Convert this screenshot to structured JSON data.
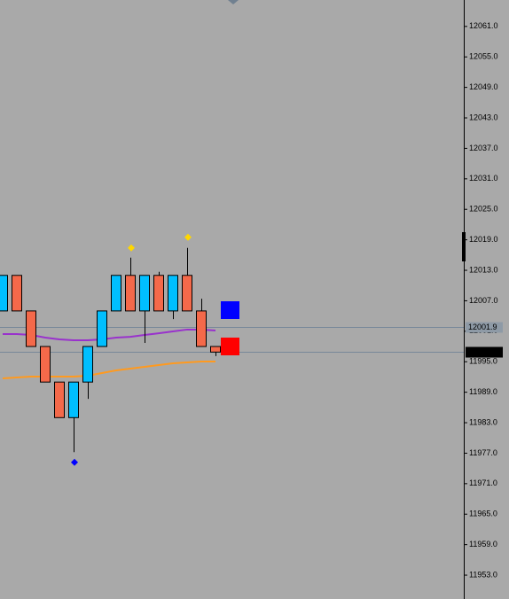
{
  "chart_data": {
    "type": "candlestick",
    "open": [
      12005,
      12012,
      12005,
      11998,
      11991,
      11984,
      11991,
      11998,
      12005,
      12012,
      12005,
      12012,
      12005,
      12012,
      12005,
      11998
    ],
    "high": [
      12012,
      12012,
      12005,
      11998,
      11991,
      11991,
      11998,
      12005,
      12012,
      12015.5,
      12012,
      12012.7,
      12012,
      12017.4,
      12007.4,
      11998
    ],
    "low": [
      12005,
      12005,
      11998,
      11991,
      11984,
      11977.2,
      11987.7,
      11998,
      12005,
      12005,
      11998.7,
      12005,
      12003.4,
      12005,
      11998,
      11996.1
    ],
    "close": [
      12012,
      12005,
      11998,
      11991,
      11984,
      11991,
      11998,
      12005,
      12012,
      12005,
      12012,
      12005,
      12012,
      12005,
      11998,
      11996.9
    ],
    "up_color": "#00bfff",
    "down_color": "#f4694a",
    "series": [
      {
        "color": "#9932cc",
        "values": [
          12000.45,
          12000.45,
          12000.28,
          11999.75,
          11999.4,
          11999.23,
          11999.23,
          11999.4,
          11999.75,
          11999.9,
          12000.28,
          12000.6,
          12000.98,
          12001.33,
          12001.33,
          12001.15
        ]
      },
      {
        "color": "#ff9a1f",
        "values": [
          11991.73,
          11991.9,
          11992.08,
          11992.08,
          11992.08,
          11992.08,
          11992.25,
          11992.78,
          11993.3,
          11993.65,
          11994.0,
          11994.35,
          11994.7,
          11994.87,
          11995.04,
          11995.04
        ]
      }
    ],
    "markers": [
      {
        "color": "#ffd700",
        "values": [
          null,
          null,
          null,
          null,
          null,
          null,
          null,
          null,
          null,
          12017.4,
          null,
          null,
          null,
          12019.5,
          null,
          null
        ]
      },
      {
        "color": "#0000ff",
        "values": [
          null,
          null,
          null,
          null,
          null,
          11975.2,
          null,
          null,
          null,
          null,
          null,
          null,
          null,
          null,
          null,
          null
        ]
      }
    ],
    "price_lines": [
      12001.9,
      11996.9
    ],
    "ylim": [
      11948.3,
      12066.2
    ],
    "yticks": [
      {
        "value": 12061,
        "label": "12061.0"
      },
      {
        "value": 12055,
        "label": "12055.0"
      },
      {
        "value": 12049,
        "label": "12049.0"
      },
      {
        "value": 12043,
        "label": "12043.0"
      },
      {
        "value": 12037,
        "label": "12037.0"
      },
      {
        "value": 12031,
        "label": "12031.0"
      },
      {
        "value": 12025,
        "label": "12025.0"
      },
      {
        "value": 12019,
        "label": "12019.0"
      },
      {
        "value": 12013,
        "label": "12013.0"
      },
      {
        "value": 12007,
        "label": "12007.0"
      },
      {
        "value": 12001,
        "label": "12001.0"
      },
      {
        "value": 11995,
        "label": "11995.0"
      },
      {
        "value": 11989,
        "label": "11989.0"
      },
      {
        "value": 11983,
        "label": "11983.0"
      },
      {
        "value": 11977,
        "label": "11977.0"
      },
      {
        "value": 11971,
        "label": "11971.0"
      },
      {
        "value": 11965,
        "label": "11965.0"
      },
      {
        "value": 11959,
        "label": "11959.0"
      },
      {
        "value": 11953,
        "label": "11953.0"
      }
    ]
  }
}
